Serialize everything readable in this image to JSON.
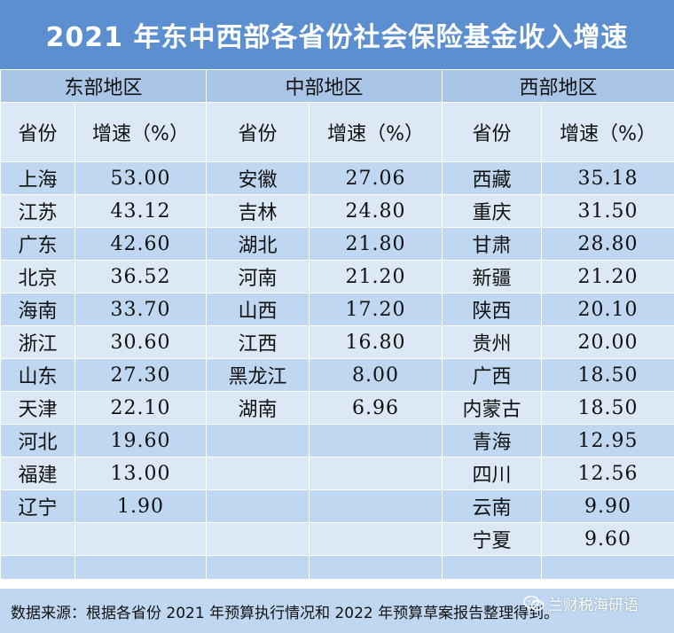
{
  "title": "2021 年东中西部各省份社会保险基金收入增速",
  "regions": [
    "东部地区",
    "中部地区",
    "西部地区"
  ],
  "column_headers": {
    "province": "省份",
    "growth": "增速（%）"
  },
  "east": [
    {
      "province": "上海",
      "value": "53.00"
    },
    {
      "province": "江苏",
      "value": "43.12"
    },
    {
      "province": "广东",
      "value": "42.60"
    },
    {
      "province": "北京",
      "value": "36.52"
    },
    {
      "province": "海南",
      "value": "33.70"
    },
    {
      "province": "浙江",
      "value": "30.60"
    },
    {
      "province": "山东",
      "value": "27.30"
    },
    {
      "province": "天津",
      "value": "22.10"
    },
    {
      "province": "河北",
      "value": "19.60"
    },
    {
      "province": "福建",
      "value": "13.00"
    },
    {
      "province": "辽宁",
      "value": "1.90"
    }
  ],
  "central": [
    {
      "province": "安徽",
      "value": "27.06"
    },
    {
      "province": "吉林",
      "value": "24.80"
    },
    {
      "province": "湖北",
      "value": "21.80"
    },
    {
      "province": "河南",
      "value": "21.20"
    },
    {
      "province": "山西",
      "value": "17.20"
    },
    {
      "province": "江西",
      "value": "16.80"
    },
    {
      "province": "黑龙江",
      "value": "8.00"
    },
    {
      "province": "湖南",
      "value": "6.96"
    }
  ],
  "west": [
    {
      "province": "西藏",
      "value": "35.18"
    },
    {
      "province": "重庆",
      "value": "31.50"
    },
    {
      "province": "甘肃",
      "value": "28.80"
    },
    {
      "province": "新疆",
      "value": "21.20"
    },
    {
      "province": "陕西",
      "value": "20.10"
    },
    {
      "province": "贵州",
      "value": "20.00"
    },
    {
      "province": "广西",
      "value": "18.50"
    },
    {
      "province": "内蒙古",
      "value": "18.50"
    },
    {
      "province": "青海",
      "value": "12.95"
    },
    {
      "province": "四川",
      "value": "12.56"
    },
    {
      "province": "云南",
      "value": "9.90"
    },
    {
      "province": "宁夏",
      "value": "9.60"
    }
  ],
  "footer": "数据来源：根据各省份 2021 年预算执行情况和 2022 年预算草案报告整理得到。",
  "watermark": {
    "text": "兰财税海研语",
    "icon": "wechat-icon"
  },
  "colors": {
    "title_bg": "#5b8fd0",
    "region_bg": "#a9c6e8",
    "band_dark": "#bfd7f0",
    "band_light": "#dde8f6"
  }
}
